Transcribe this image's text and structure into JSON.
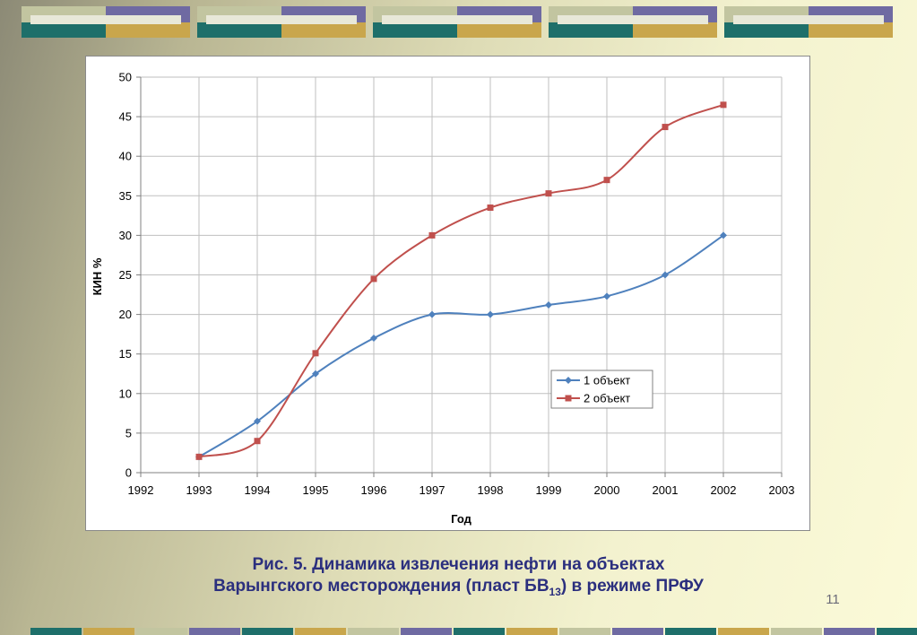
{
  "slide": {
    "caption_line1": "Рис. 5. Динамика извлечения нефти на объектах",
    "caption_line2_pre": "Варынгского месторождения (пласт БВ",
    "caption_line2_sub": "13",
    "caption_line2_post": ") в режиме ПРФУ",
    "page_number": "11",
    "colors": {
      "grey_green": "#c2c5a0",
      "purple": "#6f6aa2",
      "teal": "#1e6f6a",
      "gold": "#c9a64c",
      "light": "#e8e8d8"
    }
  },
  "chart_data": {
    "type": "line",
    "title": "",
    "xlabel": "Год",
    "ylabel": "КИН %",
    "xlim": [
      1992,
      2003
    ],
    "ylim": [
      0,
      50
    ],
    "x_ticks": [
      1992,
      1993,
      1994,
      1995,
      1996,
      1997,
      1998,
      1999,
      2000,
      2001,
      2002,
      2003
    ],
    "y_ticks": [
      0,
      5,
      10,
      15,
      20,
      25,
      30,
      35,
      40,
      45,
      50
    ],
    "grid": true,
    "smooth": true,
    "legend_position": "lower-right inside plot",
    "series": [
      {
        "name": "1 объект",
        "color": "#4f81bd",
        "marker": "diamond",
        "x": [
          1993,
          1994,
          1995,
          1996,
          1997,
          1998,
          1999,
          2000,
          2001,
          2002
        ],
        "y": [
          2,
          6.5,
          12.5,
          17,
          20,
          20,
          21.2,
          22.3,
          25,
          30
        ]
      },
      {
        "name": "2 объект",
        "color": "#c0504d",
        "marker": "square",
        "x": [
          1993,
          1994,
          1995,
          1996,
          1997,
          1998,
          1999,
          2000,
          2001,
          2002
        ],
        "y": [
          2,
          4,
          15.1,
          24.5,
          30,
          33.5,
          35.3,
          37,
          43.7,
          46.5
        ]
      }
    ]
  }
}
